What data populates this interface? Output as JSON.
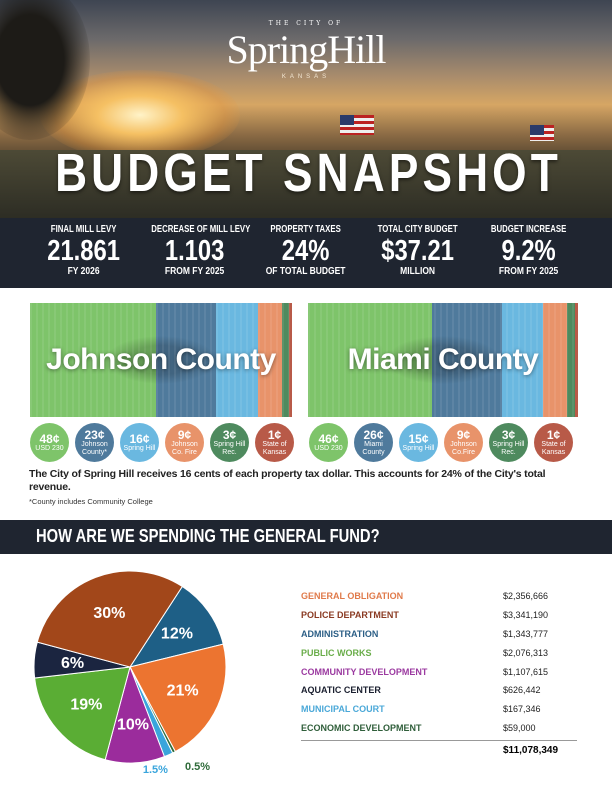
{
  "header": {
    "logo_top": "THE CITY OF",
    "logo_name": "SpringHill",
    "logo_state": "KANSAS",
    "title": "BUDGET SNAPSHOT"
  },
  "stats": [
    {
      "label": "FINAL MILL LEVY",
      "value": "21.861",
      "sub": "FY 2026"
    },
    {
      "label": "DECREASE OF MILL LEVY",
      "value": "1.103",
      "sub": "FROM FY 2025"
    },
    {
      "label": "PROPERTY TAXES",
      "value": "24%",
      "sub": "OF TOTAL BUDGET"
    },
    {
      "label": "TOTAL CITY BUDGET",
      "value": "$37.21",
      "sub": "MILLION"
    },
    {
      "label": "BUDGET INCREASE",
      "value": "9.2%",
      "sub": "FROM FY 2025"
    }
  ],
  "counties": [
    {
      "name": "Johnson County",
      "shares": [
        {
          "cents": "48¢",
          "label": "USD 230",
          "value": 48,
          "color": "#7ec46a"
        },
        {
          "cents": "23¢",
          "label": "Johnson County*",
          "value": 23,
          "color": "#4f7a9c"
        },
        {
          "cents": "16¢",
          "label": "Spring Hill",
          "value": 16,
          "color": "#6ab8e0"
        },
        {
          "cents": "9¢",
          "label": "Johnson Co. Fire",
          "value": 9,
          "color": "#e8936a"
        },
        {
          "cents": "3¢",
          "label": "Spring Hill Rec.",
          "value": 3,
          "color": "#4e8a5e"
        },
        {
          "cents": "1¢",
          "label": "State of Kansas",
          "value": 1,
          "color": "#b85a48"
        }
      ]
    },
    {
      "name": "Miami County",
      "shares": [
        {
          "cents": "46¢",
          "label": "USD 230",
          "value": 46,
          "color": "#7ec46a"
        },
        {
          "cents": "26¢",
          "label": "Miami County",
          "value": 26,
          "color": "#4f7a9c"
        },
        {
          "cents": "15¢",
          "label": "Spring Hill",
          "value": 15,
          "color": "#6ab8e0"
        },
        {
          "cents": "9¢",
          "label": "Johnson Co.Fire",
          "value": 9,
          "color": "#e8936a"
        },
        {
          "cents": "3¢",
          "label": "Spring Hill Rec.",
          "value": 3,
          "color": "#4e8a5e"
        },
        {
          "cents": "1¢",
          "label": "State of Kansas",
          "value": 1,
          "color": "#b85a48"
        }
      ]
    }
  ],
  "note": "The City of Spring Hill receives 16 cents of each property tax dollar. This accounts for 24% of the City's total revenue.",
  "footnote": "*County includes Community College",
  "section_title": "HOW ARE WE SPENDING THE GENERAL FUND?",
  "chart_data": {
    "type": "pie",
    "categories": [
      "ADMINISTRATION",
      "GENERAL OBLIGATION",
      "ECONOMIC DEVELOPMENT",
      "MUNICIPAL COURT",
      "COMMUNITY DEVELOPMENT",
      "PUBLIC WORKS",
      "AQUATIC CENTER",
      "POLICE DEPARTMENT"
    ],
    "values": [
      12,
      21,
      0.5,
      1.5,
      10,
      19,
      6,
      30
    ],
    "labels": [
      "12%",
      "21%",
      "0.5%",
      "1.5%",
      "10%",
      "19%",
      "6%",
      "30%"
    ],
    "colors": [
      "#1e5f86",
      "#ec7430",
      "#2f6b3a",
      "#3aa5dc",
      "#9b2c9c",
      "#5aad34",
      "#1b2540",
      "#a2471a"
    ]
  },
  "legend": [
    {
      "label": "GENERAL OBLIGATION",
      "amount": "$2,356,666",
      "color": "#e07a4a"
    },
    {
      "label": "POLICE DEPARTMENT",
      "amount": "$3,341,190",
      "color": "#8a3a22"
    },
    {
      "label": "ADMINISTRATION",
      "amount": "$1,343,777",
      "color": "#2c5f86"
    },
    {
      "label": "PUBLIC WORKS",
      "amount": "$2,076,313",
      "color": "#6aad4a"
    },
    {
      "label": "COMMUNITY DEVELOPMENT",
      "amount": "$1,107,615",
      "color": "#9b3aa0"
    },
    {
      "label": "AQUATIC CENTER",
      "amount": "$626,442",
      "color": "#1b2030"
    },
    {
      "label": "MUNICIPAL COURT",
      "amount": "$167,346",
      "color": "#4aa8d8"
    },
    {
      "label": "ECONOMIC DEVELOPMENT",
      "amount": "$59,000",
      "color": "#2f5e3a"
    }
  ],
  "total": "$11,078,349"
}
